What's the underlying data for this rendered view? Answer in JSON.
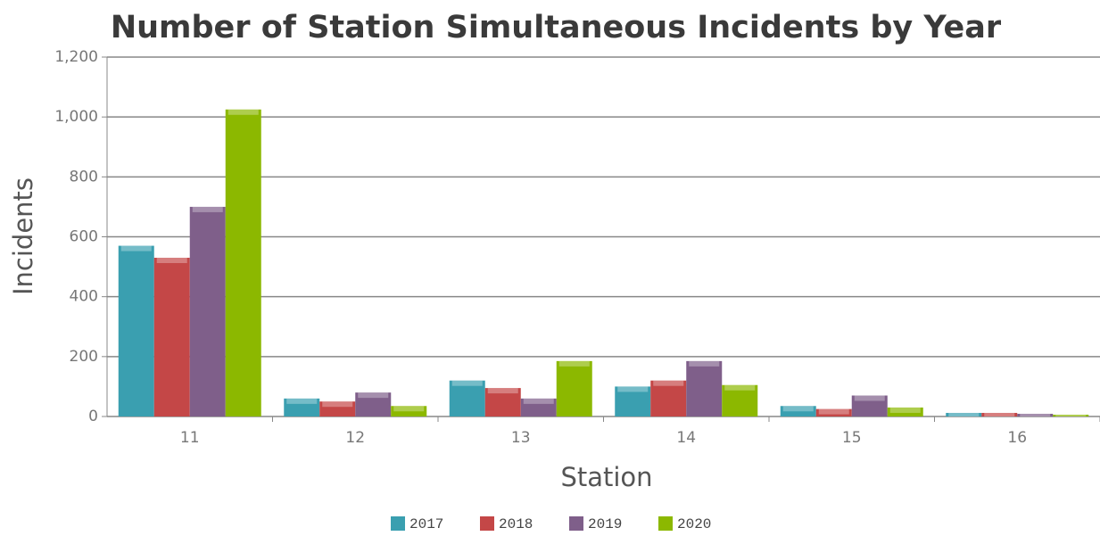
{
  "chart_data": {
    "type": "bar",
    "title": "Number of Station Simultaneous Incidents by Year",
    "x_label": "Station",
    "y_label": "Incidents",
    "categories": [
      "11",
      "12",
      "13",
      "14",
      "15",
      "16"
    ],
    "series": [
      {
        "name": "2017",
        "color": "#3a9fb0",
        "values": [
          570,
          60,
          120,
          100,
          35,
          12
        ]
      },
      {
        "name": "2018",
        "color": "#c44747",
        "values": [
          530,
          50,
          95,
          120,
          25,
          12
        ]
      },
      {
        "name": "2019",
        "color": "#7f5f8a",
        "values": [
          700,
          80,
          60,
          185,
          70,
          9
        ]
      },
      {
        "name": "2020",
        "color": "#8cb800",
        "values": [
          1025,
          35,
          185,
          105,
          30,
          6
        ]
      }
    ],
    "ylim": [
      0,
      1200
    ],
    "yticks": [
      0,
      200,
      400,
      600,
      800,
      {
        "value": 1000,
        "label": "1,000"
      },
      {
        "value": 1200,
        "label": "1,200"
      }
    ],
    "grid": true,
    "legend": "bottom"
  }
}
